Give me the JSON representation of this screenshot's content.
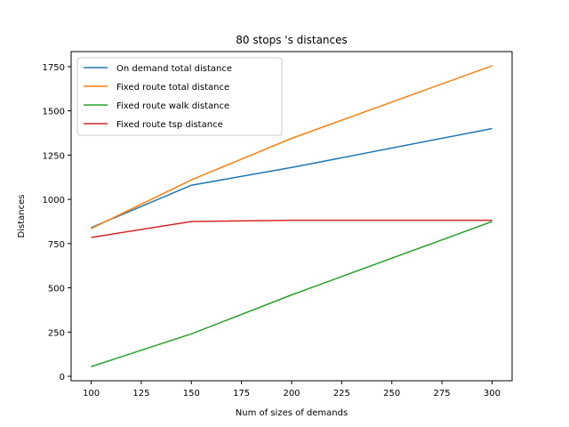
{
  "chart_data": {
    "type": "line",
    "title": "80 stops 's distances",
    "xlabel": "Num of sizes of demands",
    "ylabel": "Distances",
    "x": [
      100,
      150,
      200,
      300
    ],
    "xlim": [
      90,
      310
    ],
    "ylim": [
      -25,
      1835
    ],
    "xticks": [
      100,
      125,
      150,
      175,
      200,
      225,
      250,
      275,
      300
    ],
    "yticks": [
      0,
      250,
      500,
      750,
      1000,
      1250,
      1500,
      1750
    ],
    "grid": false,
    "legend_position": "upper-left",
    "series": [
      {
        "name": "On demand total distance",
        "color": "#1f77b4",
        "values": [
          840,
          1080,
          1180,
          1400
        ]
      },
      {
        "name": "Fixed route total distance",
        "color": "#ff7f0e",
        "values": [
          835,
          1110,
          1345,
          1755
        ]
      },
      {
        "name": "Fixed route walk distance",
        "color": "#2ca02c",
        "values": [
          55,
          240,
          460,
          875
        ]
      },
      {
        "name": "Fixed route tsp distance",
        "color": "#d62728",
        "values": [
          785,
          875,
          882,
          882
        ]
      }
    ]
  }
}
